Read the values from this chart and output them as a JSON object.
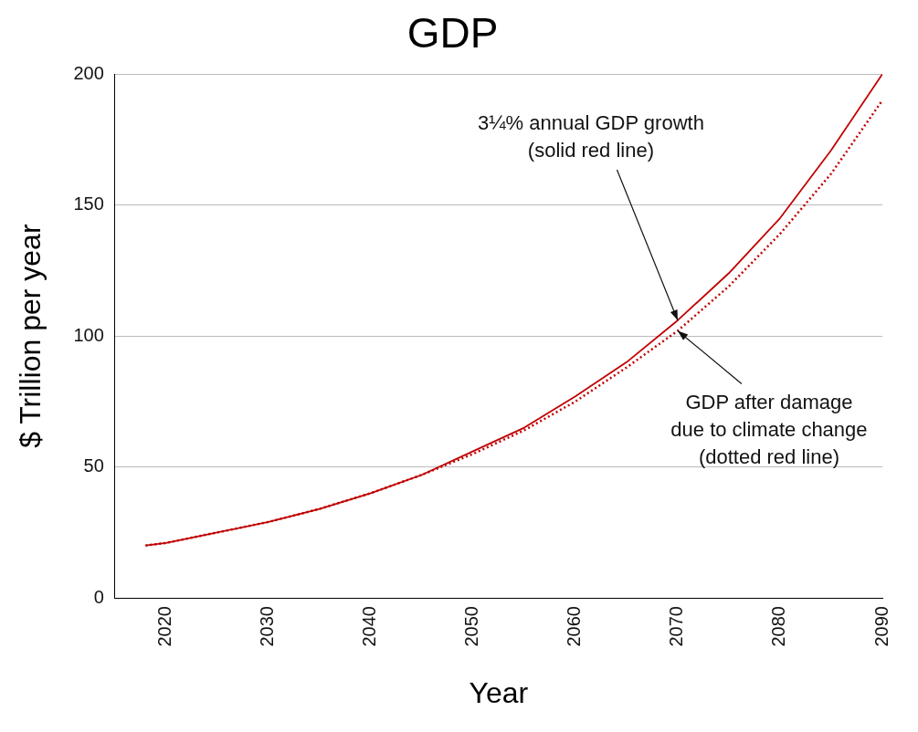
{
  "chart_data": {
    "type": "line",
    "title": "GDP",
    "xlabel": "Year",
    "ylabel": "$ Trillion per year",
    "x": [
      2018,
      2020,
      2025,
      2030,
      2035,
      2040,
      2045,
      2050,
      2055,
      2060,
      2065,
      2070,
      2075,
      2080,
      2085,
      2090
    ],
    "series": [
      {
        "color": "#c00000",
        "line_style": "solid",
        "values": [
          20,
          21,
          25,
          29,
          34,
          40,
          47,
          56,
          65,
          77,
          90,
          106,
          124,
          145,
          171,
          200
        ]
      },
      {
        "color": "#c00000",
        "line_style": "dotted",
        "values": [
          20,
          21,
          25,
          29,
          34,
          40,
          47,
          55,
          64,
          75,
          88,
          102,
          119,
          139,
          162,
          190
        ]
      }
    ],
    "xlim": [
      2015,
      2090
    ],
    "xticks": [
      2020,
      2030,
      2040,
      2050,
      2060,
      2070,
      2080,
      2090
    ],
    "ylim": [
      0,
      200
    ],
    "yticks": [
      0,
      50,
      100,
      150,
      200
    ],
    "grid": "y",
    "legend": false,
    "marker": "none",
    "annotations": [
      {
        "text": "3¼% annual GDP growth\n(solid red line)",
        "x": 2070,
        "y": 106
      },
      {
        "text": "GDP after damage\ndue to climate change\n(dotted red line)",
        "x": 2070,
        "y": 102
      }
    ]
  }
}
